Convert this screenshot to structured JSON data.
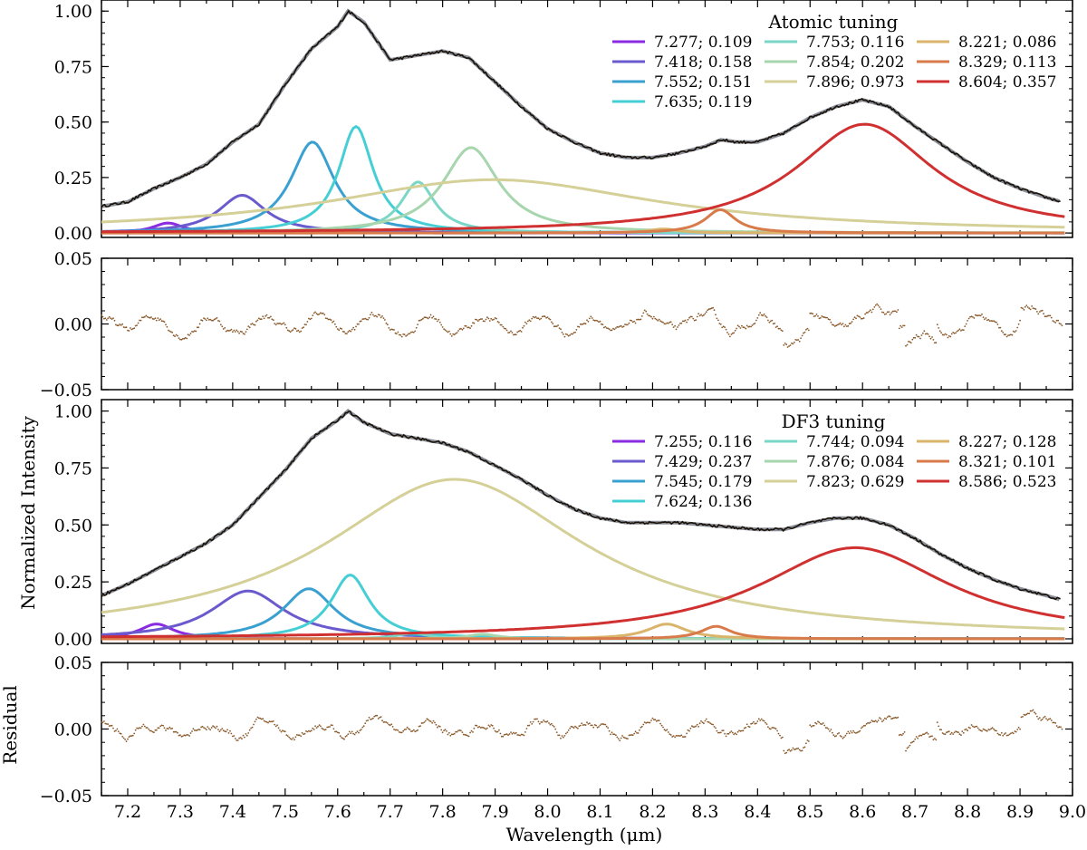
{
  "figure": {
    "xlabel": "Wavelength (μm)",
    "x_ticks": [
      "7.2",
      "7.3",
      "7.4",
      "7.5",
      "7.6",
      "7.7",
      "7.8",
      "7.9",
      "8.0",
      "8.1",
      "8.2",
      "8.3",
      "8.4",
      "8.5",
      "8.6",
      "8.7",
      "8.8",
      "8.9",
      "9.0"
    ],
    "xlim": [
      7.15,
      9.0
    ]
  },
  "chart_data": [
    {
      "type": "line",
      "panel": "atomic-spectrum",
      "legend_title": "Atomic tuning",
      "ylim": [
        -0.02,
        1.05
      ],
      "y_ticks": [
        "0.00",
        "0.25",
        "0.50",
        "0.75",
        "1.00"
      ],
      "ylabel": "",
      "observed_color": "#5a3a1a",
      "total_fit_color": "#8a8f9a",
      "components": [
        {
          "label": "7.277; 0.109",
          "center": 7.277,
          "amplitude": 0.045,
          "width": 0.035,
          "color": "#8a2be2"
        },
        {
          "label": "7.418; 0.158",
          "center": 7.418,
          "amplitude": 0.17,
          "width": 0.055,
          "color": "#6a5acd"
        },
        {
          "label": "7.552; 0.151",
          "center": 7.552,
          "amplitude": 0.41,
          "width": 0.05,
          "color": "#3aa0d0"
        },
        {
          "label": "7.635; 0.119",
          "center": 7.635,
          "amplitude": 0.48,
          "width": 0.04,
          "color": "#45cfd4"
        },
        {
          "label": "7.753; 0.116",
          "center": 7.753,
          "amplitude": 0.23,
          "width": 0.04,
          "color": "#7ad7c8"
        },
        {
          "label": "7.854; 0.202",
          "center": 7.854,
          "amplitude": 0.385,
          "width": 0.065,
          "color": "#a6d5ae"
        },
        {
          "label": "7.896; 0.973",
          "center": 7.896,
          "amplitude": 0.24,
          "width": 0.38,
          "color": "#d4d098"
        },
        {
          "label": "8.221; 0.086",
          "center": 8.221,
          "amplitude": 0.018,
          "width": 0.035,
          "color": "#d9b46a"
        },
        {
          "label": "8.329; 0.113",
          "center": 8.329,
          "amplitude": 0.105,
          "width": 0.035,
          "color": "#d87a4a"
        },
        {
          "label": "8.604; 0.357",
          "center": 8.604,
          "amplitude": 0.49,
          "width": 0.16,
          "color": "#d03030"
        }
      ],
      "total_fit": {
        "x": [
          7.15,
          7.2,
          7.25,
          7.3,
          7.35,
          7.4,
          7.45,
          7.5,
          7.55,
          7.6,
          7.62,
          7.65,
          7.7,
          7.75,
          7.8,
          7.85,
          7.9,
          7.95,
          8.0,
          8.05,
          8.1,
          8.15,
          8.2,
          8.25,
          8.3,
          8.33,
          8.36,
          8.4,
          8.45,
          8.5,
          8.55,
          8.6,
          8.65,
          8.7,
          8.75,
          8.8,
          8.85,
          8.9,
          8.95,
          8.98
        ],
        "y": [
          0.12,
          0.14,
          0.2,
          0.25,
          0.31,
          0.41,
          0.49,
          0.67,
          0.83,
          0.93,
          1.0,
          0.95,
          0.78,
          0.8,
          0.82,
          0.79,
          0.68,
          0.57,
          0.47,
          0.41,
          0.36,
          0.34,
          0.34,
          0.36,
          0.39,
          0.42,
          0.41,
          0.41,
          0.45,
          0.52,
          0.57,
          0.6,
          0.57,
          0.48,
          0.4,
          0.32,
          0.25,
          0.2,
          0.16,
          0.14
        ]
      }
    },
    {
      "type": "scatter",
      "panel": "atomic-residual",
      "ylim": [
        -0.05,
        0.05
      ],
      "y_ticks": [
        "−0.05",
        "0.00",
        "0.05"
      ],
      "ylabel": "",
      "color": "#8b5a2b"
    },
    {
      "type": "line",
      "panel": "df3-spectrum",
      "legend_title": "DF3 tuning",
      "ylim": [
        -0.02,
        1.05
      ],
      "y_ticks": [
        "0.00",
        "0.25",
        "0.50",
        "0.75",
        "1.00"
      ],
      "ylabel": "Normalized Intensity",
      "observed_color": "#5a3a1a",
      "total_fit_color": "#8a8f9a",
      "components": [
        {
          "label": "7.255; 0.116",
          "center": 7.255,
          "amplitude": 0.065,
          "width": 0.04,
          "color": "#8a2be2"
        },
        {
          "label": "7.429; 0.237",
          "center": 7.429,
          "amplitude": 0.21,
          "width": 0.085,
          "color": "#6a5acd"
        },
        {
          "label": "7.545; 0.179",
          "center": 7.545,
          "amplitude": 0.22,
          "width": 0.06,
          "color": "#3aa0d0"
        },
        {
          "label": "7.624; 0.136",
          "center": 7.624,
          "amplitude": 0.28,
          "width": 0.045,
          "color": "#45cfd4"
        },
        {
          "label": "7.744; 0.094",
          "center": 7.744,
          "amplitude": 0.025,
          "width": 0.035,
          "color": "#7ad7c8"
        },
        {
          "label": "7.876; 0.084",
          "center": 7.876,
          "amplitude": 0.02,
          "width": 0.035,
          "color": "#a6d5ae"
        },
        {
          "label": "7.823; 0.629",
          "center": 7.823,
          "amplitude": 0.7,
          "width": 0.3,
          "color": "#d4d098"
        },
        {
          "label": "8.227; 0.128",
          "center": 8.227,
          "amplitude": 0.065,
          "width": 0.045,
          "color": "#d9b46a"
        },
        {
          "label": "8.321; 0.101",
          "center": 8.321,
          "amplitude": 0.055,
          "width": 0.035,
          "color": "#d87a4a"
        },
        {
          "label": "8.586; 0.523",
          "center": 8.586,
          "amplitude": 0.4,
          "width": 0.22,
          "color": "#d03030"
        }
      ],
      "total_fit": {
        "x": [
          7.15,
          7.2,
          7.25,
          7.3,
          7.35,
          7.4,
          7.45,
          7.5,
          7.55,
          7.6,
          7.62,
          7.65,
          7.7,
          7.75,
          7.8,
          7.85,
          7.9,
          7.95,
          8.0,
          8.05,
          8.1,
          8.15,
          8.2,
          8.25,
          8.3,
          8.35,
          8.4,
          8.45,
          8.5,
          8.55,
          8.6,
          8.65,
          8.7,
          8.75,
          8.8,
          8.85,
          8.9,
          8.95,
          8.98
        ],
        "y": [
          0.19,
          0.24,
          0.3,
          0.36,
          0.42,
          0.5,
          0.62,
          0.74,
          0.88,
          0.96,
          1.0,
          0.95,
          0.9,
          0.88,
          0.86,
          0.82,
          0.76,
          0.7,
          0.63,
          0.57,
          0.53,
          0.51,
          0.51,
          0.51,
          0.5,
          0.49,
          0.48,
          0.48,
          0.51,
          0.53,
          0.53,
          0.5,
          0.44,
          0.37,
          0.31,
          0.26,
          0.22,
          0.19,
          0.17
        ]
      }
    },
    {
      "type": "scatter",
      "panel": "df3-residual",
      "ylim": [
        -0.05,
        0.05
      ],
      "y_ticks": [
        "−0.05",
        "0.00",
        "0.05"
      ],
      "ylabel": "Residual",
      "color": "#8b5a2b"
    }
  ]
}
